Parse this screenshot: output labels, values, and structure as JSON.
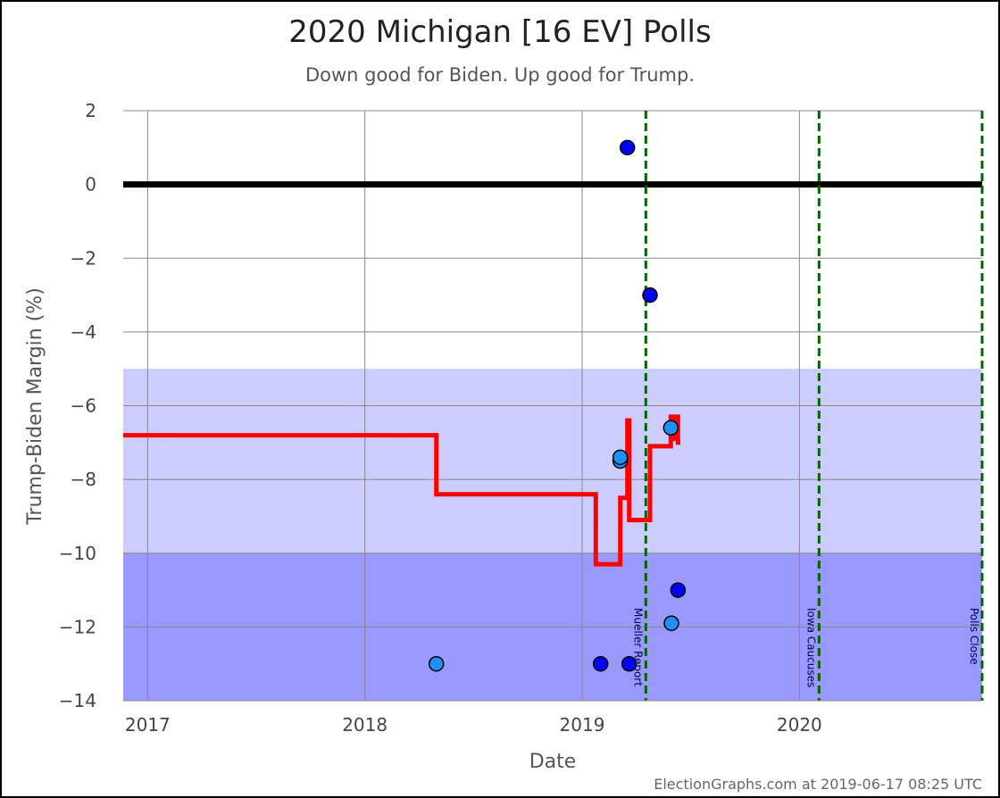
{
  "chart_data": {
    "type": "scatter",
    "title": "2020 Michigan [16 EV] Polls",
    "subtitle": "Down good for Biden. Up good for Trump.",
    "xlabel": "Date",
    "ylabel": "Trump-Biden Margin (%)",
    "credit": "ElectionGraphs.com at 2019-06-17 08:25 UTC",
    "xlim": [
      "2016-11-21",
      "2020-11-03"
    ],
    "ylim": [
      -14,
      2
    ],
    "x_ticks": [
      {
        "date": "2017-01-01",
        "label": "2017"
      },
      {
        "date": "2018-01-01",
        "label": "2018"
      },
      {
        "date": "2019-01-01",
        "label": "2019"
      },
      {
        "date": "2020-01-01",
        "label": "2020"
      }
    ],
    "y_ticks": [
      {
        "value": 2,
        "label": "2"
      },
      {
        "value": 0,
        "label": "0"
      },
      {
        "value": -2,
        "label": "−2"
      },
      {
        "value": -4,
        "label": "−4"
      },
      {
        "value": -6,
        "label": "−6"
      },
      {
        "value": -8,
        "label": "−8"
      },
      {
        "value": -10,
        "label": "−10"
      },
      {
        "value": -12,
        "label": "−12"
      },
      {
        "value": -14,
        "label": "−14"
      }
    ],
    "grid": true,
    "bands": [
      {
        "from": -10,
        "to": -5,
        "color": "#ccccff"
      },
      {
        "from": -14,
        "to": -10,
        "color": "#9999ff"
      }
    ],
    "zero_line_color": "#000000",
    "events": [
      {
        "date": "2019-04-18",
        "label": "Mueller Report",
        "color": "#006400"
      },
      {
        "date": "2020-02-03",
        "label": "Iowa Caucuses",
        "color": "#006400"
      },
      {
        "date": "2020-11-03",
        "label": "Polls Close",
        "color": "#006400"
      }
    ],
    "polls": [
      {
        "date": "2019-03-18",
        "margin": 1.0,
        "color": "#0000ff"
      },
      {
        "date": "2019-04-25",
        "margin": -3.0,
        "color": "#0000ff"
      },
      {
        "date": "2019-05-30",
        "margin": -6.6,
        "color": "#1e90ff"
      },
      {
        "date": "2019-03-06",
        "margin": -7.5,
        "color": "#1e90ff"
      },
      {
        "date": "2019-03-06",
        "margin": -7.4,
        "color": "#1e90ff"
      },
      {
        "date": "2019-06-11",
        "margin": -11.0,
        "color": "#0000ff"
      },
      {
        "date": "2019-05-31",
        "margin": -11.9,
        "color": "#1e90ff"
      },
      {
        "date": "2018-05-01",
        "margin": -13.0,
        "color": "#1e90ff"
      },
      {
        "date": "2019-02-01",
        "margin": -13.0,
        "color": "#0000ff"
      },
      {
        "date": "2019-03-21",
        "margin": -13.0,
        "color": "#0000ff"
      }
    ],
    "average": {
      "color": "#ff0000",
      "points": [
        [
          "2016-11-21",
          -6.8
        ],
        [
          "2018-05-01",
          -6.8
        ],
        [
          "2018-05-01",
          -8.4
        ],
        [
          "2019-01-24",
          -8.4
        ],
        [
          "2019-01-24",
          -10.3
        ],
        [
          "2019-03-06",
          -10.3
        ],
        [
          "2019-03-06",
          -8.5
        ],
        [
          "2019-03-18",
          -8.5
        ],
        [
          "2019-03-18",
          -6.4
        ],
        [
          "2019-03-21",
          -6.4
        ],
        [
          "2019-03-21",
          -9.1
        ],
        [
          "2019-04-25",
          -9.1
        ],
        [
          "2019-04-25",
          -7.1
        ],
        [
          "2019-05-30",
          -7.1
        ],
        [
          "2019-05-30",
          -6.3
        ],
        [
          "2019-06-06",
          -6.3
        ],
        [
          "2019-06-06",
          -6.9
        ],
        [
          "2019-06-09",
          -6.9
        ],
        [
          "2019-06-09",
          -6.3
        ],
        [
          "2019-06-11",
          -6.3
        ],
        [
          "2019-06-11",
          -7.0
        ],
        [
          "2019-06-15",
          -7.0
        ]
      ]
    }
  }
}
